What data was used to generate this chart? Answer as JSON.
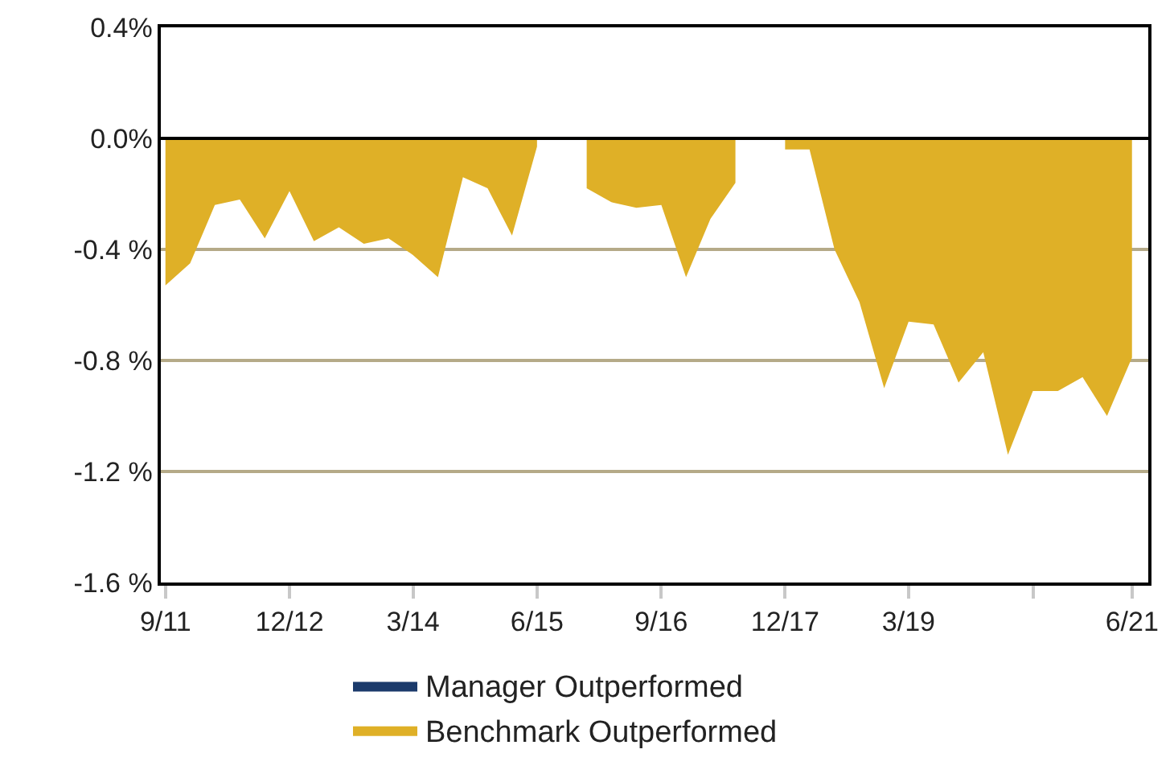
{
  "chart_data": {
    "type": "area",
    "x": [
      "2011-09",
      "2011-12",
      "2012-03",
      "2012-06",
      "2012-09",
      "2012-12",
      "2013-03",
      "2013-06",
      "2013-09",
      "2013-12",
      "2014-03",
      "2014-06",
      "2014-09",
      "2014-12",
      "2015-03",
      "2015-06",
      "2015-09",
      "2015-12",
      "2016-03",
      "2016-06",
      "2016-09",
      "2016-12",
      "2017-03",
      "2017-06",
      "2017-09",
      "2017-12",
      "2018-03",
      "2018-06",
      "2018-09",
      "2018-12",
      "2019-03",
      "2019-06",
      "2019-09",
      "2019-12",
      "2020-03",
      "2020-06",
      "2020-09",
      "2020-12",
      "2021-03",
      "2021-06"
    ],
    "series": [
      {
        "name": "Manager Outperformed",
        "color": "#1b3a6b",
        "values": [
          null,
          null,
          null,
          null,
          null,
          null,
          null,
          null,
          null,
          null,
          null,
          null,
          null,
          null,
          null,
          null,
          null,
          null,
          null,
          null,
          null,
          null,
          null,
          null,
          null,
          null,
          null,
          null,
          null,
          null,
          null,
          null,
          null,
          null,
          null,
          null,
          null,
          null,
          null,
          null
        ]
      },
      {
        "name": "Benchmark Outperformed",
        "color": "#dfb027",
        "values": [
          -0.53,
          -0.45,
          -0.24,
          -0.22,
          -0.36,
          -0.19,
          -0.37,
          -0.32,
          -0.38,
          -0.36,
          -0.42,
          -0.5,
          -0.14,
          -0.18,
          -0.35,
          -0.03,
          null,
          -0.18,
          -0.23,
          -0.25,
          -0.24,
          -0.5,
          -0.29,
          -0.16,
          null,
          -0.04,
          -0.04,
          -0.4,
          -0.59,
          -0.9,
          -0.66,
          -0.67,
          -0.88,
          -0.77,
          -1.14,
          -0.91,
          -0.91,
          -0.86,
          -1.0,
          -0.79
        ]
      }
    ],
    "xlim": [
      "2011-08-15",
      "2021-07-31"
    ],
    "xticks": [
      {
        "value": "2011-09",
        "label": "9/11"
      },
      {
        "value": "2012-12",
        "label": "12/12"
      },
      {
        "value": "2014-03",
        "label": "3/14"
      },
      {
        "value": "2015-06",
        "label": "6/15"
      },
      {
        "value": "2016-09",
        "label": "9/16"
      },
      {
        "value": "2017-12",
        "label": "12/17"
      },
      {
        "value": "2019-03",
        "label": "3/19"
      },
      {
        "value": "2020-06",
        "label": null
      },
      {
        "value": "2021-06",
        "label": "6/21"
      }
    ],
    "ylim": [
      -1.6,
      0.4
    ],
    "yticks": [
      {
        "value": 0.4,
        "label": "0.4%"
      },
      {
        "value": 0.0,
        "label": "0.0%"
      },
      {
        "value": -0.4,
        "label": "-0.4 %"
      },
      {
        "value": -0.8,
        "label": "-0.8 %"
      },
      {
        "value": -1.2,
        "label": "-1.2 %"
      },
      {
        "value": -1.6,
        "label": "-1.6 %"
      }
    ],
    "ref_lines": [
      {
        "axis": "y",
        "value": 0,
        "color": "#000000"
      }
    ],
    "grid": "y",
    "legend": "bottom"
  }
}
